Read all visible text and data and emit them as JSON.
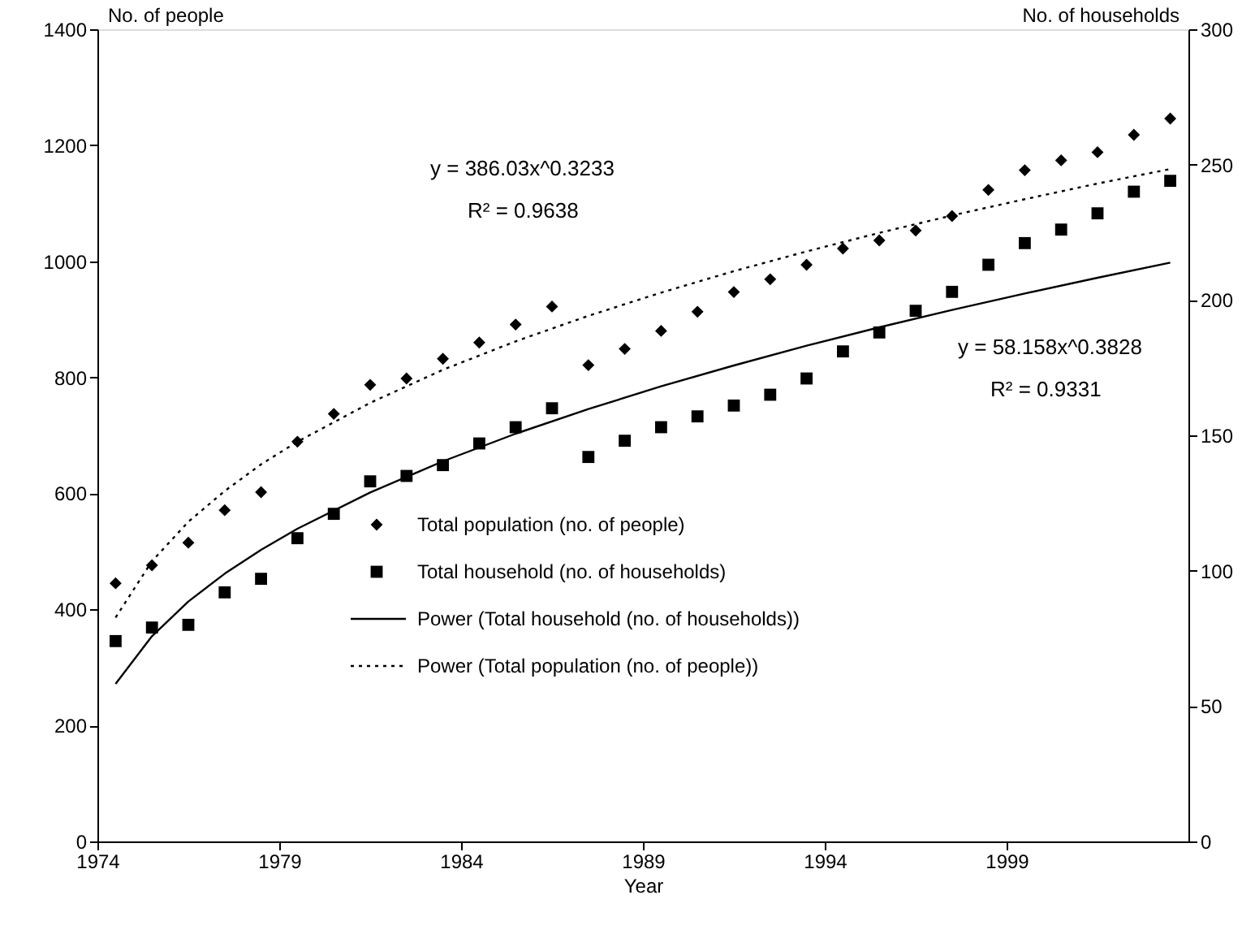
{
  "chart_data": {
    "type": "scatter",
    "xlabel": "Year",
    "ylabel": "No. of people",
    "y2label": "No. of households",
    "xlim": [
      1974,
      2004
    ],
    "xticks": [
      1974,
      1979,
      1984,
      1989,
      1994,
      1999
    ],
    "ylim": [
      0,
      1400
    ],
    "yticks": [
      0,
      200,
      400,
      600,
      800,
      {
        "value": 1000,
        "label": "1000"
      },
      {
        "value": 1200,
        "label": "1200"
      },
      {
        "value": 1400,
        "label": "1400"
      }
    ],
    "y2lim": [
      0,
      300
    ],
    "y2ticks": [
      0,
      50,
      100,
      150,
      200,
      250,
      300
    ],
    "grid": false,
    "legend": "bottom",
    "annotations": [
      "y = 386.03x^0.3233",
      "R² = 0.9638",
      "y = 58.158x^0.3828",
      "R² = 0.9331"
    ],
    "series": [
      {
        "name": "Total population (no. of people)",
        "marker": "diamond",
        "color": "#000000",
        "x": [
          1974.5,
          1975.5,
          1976.5,
          1977.5,
          1978.5,
          1979.5,
          1980.5,
          1981.5,
          1982.5,
          1983.5,
          1984.5,
          1985.5,
          1986.5,
          1987.5,
          1988.5,
          1989.5,
          1990.5,
          1991.5,
          1992.5,
          1993.5,
          1994.5,
          1995.5,
          1996.5,
          1997.5,
          1998.5,
          1999.5,
          2000.5,
          2001.5,
          2002.5,
          2003.5
        ],
        "values": [
          445,
          476,
          515,
          571,
          602,
          689,
          737,
          787,
          798,
          832,
          860,
          891,
          922,
          821,
          849,
          880,
          913,
          947,
          969,
          994,
          1022,
          1036,
          1053,
          1078,
          1123,
          1157,
          1174,
          1188,
          1218,
          1246
        ]
      },
      {
        "name": "Total household (no. of households)",
        "marker": "square",
        "axis": "y2",
        "color": "#000000",
        "x": [
          1974.5,
          1975.5,
          1976.5,
          1977.5,
          1978.5,
          1979.5,
          1980.5,
          1981.5,
          1982.5,
          1983.5,
          1984.5,
          1985.5,
          1986.5,
          1987.5,
          1988.5,
          1989.5,
          1990.5,
          1991.5,
          1992.5,
          1993.5,
          1994.5,
          1995.5,
          1996.5,
          1997.5,
          1998.5,
          1999.5,
          2000.5,
          2001.5,
          2002.5,
          2003.5
        ],
        "values": [
          74,
          79,
          80,
          92,
          97,
          112,
          121,
          133,
          135,
          139,
          147,
          153,
          160,
          142,
          148,
          153,
          157,
          161,
          165,
          171,
          181,
          188,
          196,
          203,
          213,
          221,
          226,
          232,
          240,
          244
        ]
      },
      {
        "name": "Power (Total household (no. of households))",
        "type": "line",
        "line_style": "solid",
        "axis": "y2",
        "color": "#000000",
        "x": [
          1974.5,
          1975.5,
          1976.5,
          1977.5,
          1978.5,
          1979.5,
          1981.5,
          1983.5,
          1985.5,
          1987.5,
          1989.5,
          1991.5,
          1993.5,
          1995.5,
          1997.5,
          1999.5,
          2001.5,
          2003.5
        ],
        "values": [
          58.2,
          75.8,
          88.6,
          98.9,
          107.7,
          115.5,
          128.9,
          140.4,
          150.6,
          159.7,
          168.1,
          175.8,
          183.1,
          189.9,
          196.3,
          202.4,
          208.2,
          213.8
        ]
      },
      {
        "name": "Power (Total population (no. of people))",
        "type": "line",
        "line_style": "dotted",
        "color": "#000000",
        "x": [
          1974.5,
          1975.5,
          1976.5,
          1977.5,
          1978.5,
          1979.5,
          1981.5,
          1983.5,
          1985.5,
          1987.5,
          1989.5,
          1991.5,
          1993.5,
          1995.5,
          1997.5,
          1999.5,
          2001.5,
          2003.5
        ],
        "values": [
          386,
          483,
          551,
          604,
          650,
          689,
          756,
          813,
          862,
          906,
          946,
          983,
          1017,
          1049,
          1079,
          1107,
          1134,
          1159
        ]
      }
    ]
  }
}
